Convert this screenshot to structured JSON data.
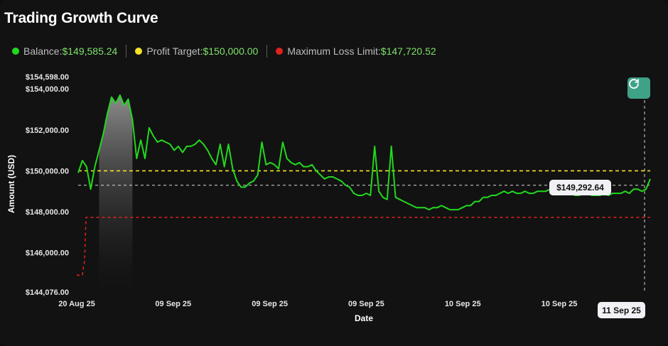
{
  "title": "Trading Growth Curve",
  "legend": [
    {
      "label": "Balance:",
      "value": "$149,585.24",
      "color": "#22d81e"
    },
    {
      "label": "Profit Target:",
      "value": "$150,000.00",
      "color": "#f2e22b"
    },
    {
      "label": "Maximum Loss Limit:",
      "value": "$147,720.52",
      "color": "#e0221c"
    }
  ],
  "tooltip": {
    "date": "11 Sep 25",
    "value": "$149,292.64"
  },
  "reset_icon": "refresh-icon",
  "chart_data": {
    "type": "line",
    "title": "Trading Growth Curve",
    "xlabel": "Date",
    "ylabel": "Amount (USD)",
    "ylim": [
      144076,
      154598
    ],
    "y_ticks": [
      144076,
      146000,
      148000,
      150000,
      152000,
      154000,
      154598
    ],
    "y_tick_labels": [
      "$144,076.00",
      "$146,000.00",
      "$148,000.00",
      "$150,000.00",
      "$152,000.00",
      "$154,000.00",
      "$154,598.00"
    ],
    "x_tick_labels": [
      "20 Aug 25",
      "09 Sep 25",
      "09 Sep 25",
      "09 Sep 25",
      "10 Sep 25",
      "10 Sep 25"
    ],
    "grid": false,
    "crosshair_value": 149292.64,
    "series": [
      {
        "name": "Balance",
        "color": "#22d81e",
        "values": [
          149900,
          150500,
          150200,
          149100,
          150200,
          151000,
          151800,
          152800,
          153600,
          153300,
          153700,
          153200,
          153500,
          152500,
          150600,
          151500,
          150600,
          152100,
          151700,
          151400,
          151500,
          151400,
          151300,
          151000,
          151200,
          150900,
          151200,
          151200,
          151300,
          151500,
          151300,
          151000,
          150600,
          150300,
          151300,
          150200,
          151300,
          150100,
          149500,
          149200,
          149200,
          149400,
          149500,
          149800,
          151400,
          150300,
          150400,
          150300,
          150100,
          151400,
          150600,
          150400,
          150300,
          150400,
          150200,
          150200,
          150300,
          150000,
          149800,
          149600,
          149700,
          149700,
          149600,
          149500,
          149300,
          149200,
          148900,
          148800,
          148800,
          148900,
          148800,
          151200,
          149000,
          148700,
          148600,
          151200,
          148700,
          148600,
          148500,
          148400,
          148300,
          148200,
          148200,
          148200,
          148100,
          148200,
          148200,
          148300,
          148200,
          148100,
          148100,
          148100,
          148200,
          148300,
          148300,
          148500,
          148500,
          148700,
          148700,
          148800,
          148800,
          148900,
          149000,
          148900,
          149000,
          148900,
          148900,
          149000,
          148900,
          148900,
          149000,
          149000,
          149000,
          149100,
          148900,
          148900,
          148900,
          149000,
          148900,
          148800,
          148800,
          148900,
          148900,
          148800,
          148800,
          148800,
          148900,
          148800,
          148900,
          148900,
          148900,
          149000,
          148900,
          149100,
          149100,
          149000,
          149100,
          149600
        ]
      },
      {
        "name": "Profit Target",
        "color": "#f2e22b",
        "values": [
          150000,
          150000
        ]
      },
      {
        "name": "Maximum Loss Limit",
        "color": "#e0221c",
        "values": [
          144900,
          144900,
          144900,
          145200,
          145600,
          147720.52,
          147720.52,
          147720.52
        ]
      }
    ]
  }
}
